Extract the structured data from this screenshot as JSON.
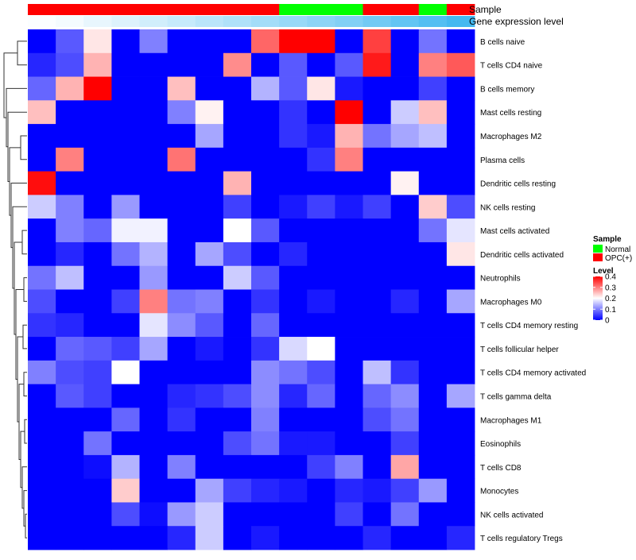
{
  "chart_data": {
    "type": "heatmap",
    "title": "",
    "annotation_labels": {
      "sample": "Sample",
      "gene": "Gene expression level"
    },
    "sample_annotation": [
      "OPC(+)",
      "OPC(+)",
      "OPC(+)",
      "OPC(+)",
      "OPC(+)",
      "OPC(+)",
      "OPC(+)",
      "OPC(+)",
      "OPC(+)",
      "Normal",
      "Normal",
      "Normal",
      "OPC(+)",
      "OPC(+)",
      "Normal",
      "OPC(+)"
    ],
    "gene_expression_annotation": [
      0.02,
      0.06,
      0.12,
      0.18,
      0.24,
      0.3,
      0.36,
      0.42,
      0.48,
      0.54,
      0.6,
      0.66,
      0.74,
      0.82,
      0.9,
      0.98
    ],
    "rows": [
      "B cells naive",
      "T cells CD4 naive",
      "B cells memory",
      "Mast cells resting",
      "Macrophages M2",
      "Plasma cells",
      "Dendritic cells resting",
      "NK cells resting",
      "Mast cells activated",
      "Dendritic cells activated",
      "Neutrophils",
      "Macrophages M0",
      "T cells CD4 memory resting",
      "T cells follicular helper",
      "T cells CD4 memory activated",
      "T cells gamma delta",
      "Macrophages M1",
      "Eosinophils",
      "T cells CD8",
      "Monocytes",
      "NK cells activated",
      "T cells regulatory  Tregs"
    ],
    "values": [
      [
        0.0,
        0.07,
        0.22,
        0.0,
        0.1,
        0.0,
        0.0,
        0.0,
        0.32,
        0.4,
        0.4,
        0.0,
        0.35,
        0.0,
        0.09,
        0.0
      ],
      [
        0.03,
        0.06,
        0.26,
        0.0,
        0.0,
        0.0,
        0.0,
        0.29,
        0.0,
        0.07,
        0.0,
        0.07,
        0.38,
        0.0,
        0.3,
        0.33
      ],
      [
        0.08,
        0.26,
        0.4,
        0.0,
        0.0,
        0.25,
        0.0,
        0.0,
        0.14,
        0.07,
        0.22,
        0.02,
        0.0,
        0.0,
        0.05,
        0.0
      ],
      [
        0.25,
        0.0,
        0.0,
        0.0,
        0.0,
        0.1,
        0.21,
        0.0,
        0.0,
        0.04,
        0.0,
        0.4,
        0.0,
        0.16,
        0.25,
        0.0
      ],
      [
        0.0,
        0.0,
        0.0,
        0.0,
        0.0,
        0.0,
        0.13,
        0.0,
        0.0,
        0.04,
        0.02,
        0.26,
        0.09,
        0.13,
        0.15,
        0.0
      ],
      [
        0.0,
        0.3,
        0.0,
        0.0,
        0.0,
        0.31,
        0.0,
        0.0,
        0.0,
        0.0,
        0.04,
        0.3,
        0.0,
        0.0,
        0.0,
        0.0
      ],
      [
        0.39,
        0.0,
        0.0,
        0.0,
        0.0,
        0.0,
        0.0,
        0.26,
        0.0,
        0.0,
        0.0,
        0.0,
        0.0,
        0.21,
        0.0,
        0.0
      ],
      [
        0.16,
        0.1,
        0.0,
        0.12,
        0.0,
        0.0,
        0.0,
        0.05,
        0.0,
        0.02,
        0.05,
        0.02,
        0.05,
        0.0,
        0.24,
        0.06
      ],
      [
        0.0,
        0.1,
        0.08,
        0.19,
        0.19,
        0.0,
        0.0,
        0.2,
        0.07,
        0.0,
        0.0,
        0.0,
        0.0,
        0.0,
        0.09,
        0.18
      ],
      [
        0.0,
        0.03,
        0.0,
        0.09,
        0.14,
        0.0,
        0.13,
        0.06,
        0.0,
        0.03,
        0.0,
        0.0,
        0.0,
        0.0,
        0.0,
        0.22
      ],
      [
        0.09,
        0.15,
        0.0,
        0.0,
        0.12,
        0.0,
        0.0,
        0.16,
        0.07,
        0.0,
        0.0,
        0.0,
        0.0,
        0.0,
        0.0,
        0.0
      ],
      [
        0.06,
        0.0,
        0.0,
        0.05,
        0.3,
        0.09,
        0.1,
        0.0,
        0.04,
        0.0,
        0.02,
        0.0,
        0.0,
        0.03,
        0.0,
        0.13
      ],
      [
        0.04,
        0.03,
        0.0,
        0.0,
        0.18,
        0.11,
        0.07,
        0.0,
        0.08,
        0.0,
        0.0,
        0.0,
        0.0,
        0.0,
        0.0,
        0.0
      ],
      [
        0.0,
        0.08,
        0.07,
        0.05,
        0.13,
        0.0,
        0.02,
        0.0,
        0.04,
        0.17,
        0.2,
        0.0,
        0.0,
        0.0,
        0.0,
        0.0
      ],
      [
        0.1,
        0.06,
        0.05,
        0.2,
        0.0,
        0.0,
        0.0,
        0.0,
        0.11,
        0.09,
        0.06,
        0.0,
        0.15,
        0.04,
        0.0,
        0.0
      ],
      [
        0.0,
        0.07,
        0.05,
        0.0,
        0.0,
        0.03,
        0.04,
        0.06,
        0.11,
        0.03,
        0.08,
        0.0,
        0.08,
        0.11,
        0.0,
        0.13
      ],
      [
        0.0,
        0.0,
        0.0,
        0.08,
        0.0,
        0.04,
        0.0,
        0.0,
        0.1,
        0.0,
        0.0,
        0.0,
        0.06,
        0.09,
        0.0,
        0.0
      ],
      [
        0.0,
        0.0,
        0.09,
        0.0,
        0.0,
        0.0,
        0.0,
        0.06,
        0.09,
        0.02,
        0.02,
        0.0,
        0.0,
        0.05,
        0.0,
        0.0
      ],
      [
        0.0,
        0.0,
        0.01,
        0.14,
        0.0,
        0.1,
        0.0,
        0.0,
        0.0,
        0.0,
        0.05,
        0.1,
        0.0,
        0.27,
        0.0,
        0.0
      ],
      [
        0.0,
        0.0,
        0.0,
        0.24,
        0.0,
        0.0,
        0.13,
        0.05,
        0.03,
        0.02,
        0.0,
        0.03,
        0.02,
        0.05,
        0.12,
        0.0
      ],
      [
        0.0,
        0.0,
        0.0,
        0.06,
        0.01,
        0.12,
        0.16,
        0.0,
        0.0,
        0.0,
        0.0,
        0.05,
        0.0,
        0.09,
        0.0,
        0.0
      ],
      [
        0.0,
        0.0,
        0.0,
        0.0,
        0.0,
        0.03,
        0.16,
        0.0,
        0.02,
        0.0,
        0.0,
        0.0,
        0.03,
        0.0,
        0.0,
        0.03
      ]
    ],
    "color_scale": {
      "min": 0,
      "mid": 0.2,
      "max": 0.4,
      "low_color": "#0000ff",
      "mid_color": "#ffffff",
      "high_color": "#ff0000"
    },
    "legend": {
      "sample_title": "Sample",
      "sample_entries": [
        {
          "label": "Normal",
          "color": "#00ff00"
        },
        {
          "label": "OPC(+)",
          "color": "#ff0000"
        }
      ],
      "level_title": "Level",
      "level_ticks": [
        "0.4",
        "0.3",
        "0.2",
        "0.1",
        "0"
      ],
      "level_tick_values": [
        0.4,
        0.3,
        0.2,
        0.1,
        0
      ]
    },
    "sample_colors": {
      "Normal": "#00ff00",
      "OPC(+)": "#ff0000"
    },
    "gene_colors": {
      "low": "#ffffff",
      "high": "#40b8f0"
    }
  }
}
